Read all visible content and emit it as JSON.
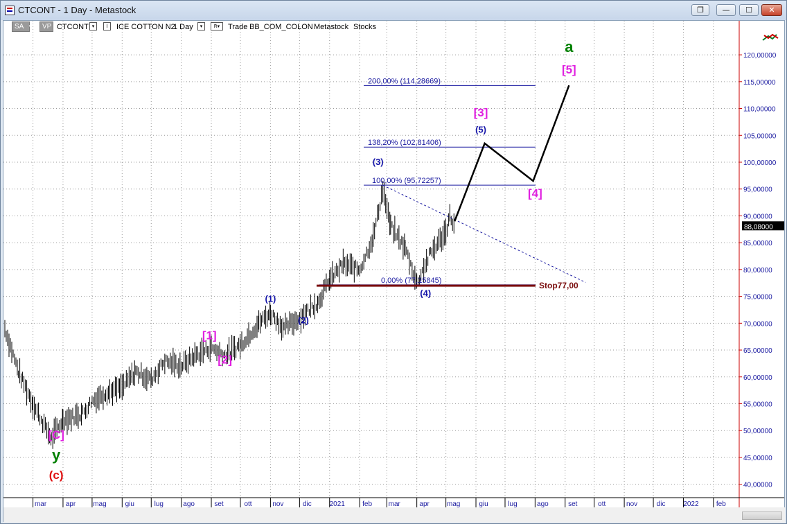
{
  "window": {
    "title": "CTCONT - 1 Day - Metastock",
    "buttons": {
      "restore": "❐",
      "minimize": "—",
      "maximize": "☐",
      "close": "✕"
    }
  },
  "toolbar": {
    "sa": "SA",
    "vp": "VP",
    "symbol": "CTCONT",
    "drop_icon": "▾",
    "security_name": "ICE COTTON N2",
    "periodicity": "1 Day",
    "r_label": "R",
    "trade": "Trade",
    "expert": "BB_COM_COLON",
    "data_source": "Metastock",
    "type": "Stocks"
  },
  "colors": {
    "price_bars": "#000000",
    "grid": "#9a9a9a",
    "axis_text": "#1a1aa0",
    "fib_lines": "#1a1aa0",
    "stop_line": "#7a0d0d",
    "wave_magenta": "#e020e0",
    "wave_blue": "#1414a8",
    "wave_red": "#e01010",
    "wave_green": "#008000",
    "projection": "#000000",
    "last_price_bg": "#000000"
  },
  "chart_data": {
    "type": "ohlc-bar",
    "ylim": [
      37.5,
      123.5
    ],
    "y_ticks": [
      "40,00000",
      "45,00000",
      "50,00000",
      "55,00000",
      "60,00000",
      "65,00000",
      "70,00000",
      "75,00000",
      "80,00000",
      "85,00000",
      "90,00000",
      "95,00000",
      "100,00000",
      "105,00000",
      "110,00000",
      "115,00000",
      "120,00000"
    ],
    "y_tick_values": [
      40,
      45,
      50,
      55,
      60,
      65,
      70,
      75,
      80,
      85,
      90,
      95,
      100,
      105,
      110,
      115,
      120
    ],
    "x_ticks": [
      "mar",
      "apr",
      "mag",
      "giu",
      "lug",
      "ago",
      "set",
      "ott",
      "nov",
      "dic",
      "2021",
      "feb",
      "mar",
      "apr",
      "mag",
      "giu",
      "lug",
      "ago",
      "set",
      "ott",
      "nov",
      "dic",
      "2022",
      "feb"
    ],
    "x_tick_dates": [
      "2020-03",
      "2020-04",
      "2020-05",
      "2020-06",
      "2020-07",
      "2020-08",
      "2020-09",
      "2020-10",
      "2020-11",
      "2020-12",
      "2021-01",
      "2021-02",
      "2021-03",
      "2021-04",
      "2021-05",
      "2021-06",
      "2021-07",
      "2021-08",
      "2021-09",
      "2021-10",
      "2021-11",
      "2021-12",
      "2022-01",
      "2022-02"
    ],
    "last_price": "88,08000",
    "last_price_value": 88.08,
    "price_path": [
      [
        "2020-02-01",
        69
      ],
      [
        "2020-02-15",
        61
      ],
      [
        "2020-03-01",
        55
      ],
      [
        "2020-03-20",
        48.5
      ],
      [
        "2020-04-01",
        52
      ],
      [
        "2020-04-20",
        53
      ],
      [
        "2020-05-01",
        55.5
      ],
      [
        "2020-05-15",
        57
      ],
      [
        "2020-06-01",
        58
      ],
      [
        "2020-06-15",
        61
      ],
      [
        "2020-07-01",
        59.5
      ],
      [
        "2020-07-15",
        63
      ],
      [
        "2020-08-01",
        62
      ],
      [
        "2020-08-15",
        64
      ],
      [
        "2020-09-01",
        65.5
      ],
      [
        "2020-09-15",
        64
      ],
      [
        "2020-10-01",
        66
      ],
      [
        "2020-10-20",
        70
      ],
      [
        "2020-11-01",
        72
      ],
      [
        "2020-11-15",
        69
      ],
      [
        "2020-12-01",
        71
      ],
      [
        "2020-12-20",
        74
      ],
      [
        "2021-01-01",
        78
      ],
      [
        "2021-01-15",
        81
      ],
      [
        "2021-02-01",
        80
      ],
      [
        "2021-02-15",
        86
      ],
      [
        "2021-02-25",
        95
      ],
      [
        "2021-03-05",
        88
      ],
      [
        "2021-03-20",
        84
      ],
      [
        "2021-04-01",
        77.5
      ],
      [
        "2021-04-15",
        83
      ],
      [
        "2021-05-01",
        87
      ],
      [
        "2021-05-05",
        90
      ],
      [
        "2021-05-10",
        88.08
      ]
    ],
    "fib_levels": [
      {
        "label": "200,00% (114,28669)",
        "value": 114.28669
      },
      {
        "label": "138,20% (102,81406)",
        "value": 102.81406
      },
      {
        "label": "100,00% (95,72257)",
        "value": 95.72257
      },
      {
        "label": "0,00% (77,15845)",
        "value": 77.15845
      }
    ],
    "stop": {
      "label": "Stop77,00",
      "value": 77.0
    },
    "trendline": [
      [
        "2021-02-25",
        95.7
      ],
      [
        "2021-09-15",
        77.6
      ]
    ],
    "projection": [
      [
        "2021-05-10",
        89
      ],
      [
        "2021-06-10",
        103.5
      ],
      [
        "2021-07-30",
        96.5
      ],
      [
        "2021-09-05",
        114.3
      ]
    ],
    "wave_labels": [
      {
        "text": "[C]",
        "color": "wave_magenta",
        "x": "2020-03-25",
        "y": 48.5
      },
      {
        "text": "y",
        "color": "wave_green",
        "x": "2020-03-25",
        "y": 44.5
      },
      {
        "text": "(c)",
        "color": "wave_red",
        "x": "2020-03-25",
        "y": 41
      },
      {
        "text": "[1]",
        "color": "wave_magenta",
        "x": "2020-08-30",
        "y": 67
      },
      {
        "text": "[2]",
        "color": "wave_magenta",
        "x": "2020-09-15",
        "y": 62.5
      },
      {
        "text": "(1)",
        "color": "wave_blue",
        "x": "2020-11-01",
        "y": 74
      },
      {
        "text": "(2)",
        "color": "wave_blue",
        "x": "2020-12-05",
        "y": 70
      },
      {
        "text": "(3)",
        "color": "wave_blue",
        "x": "2021-02-20",
        "y": 99.5
      },
      {
        "text": "(4)",
        "color": "wave_blue",
        "x": "2021-04-10",
        "y": 75
      },
      {
        "text": "(5)",
        "color": "wave_blue",
        "x": "2021-06-06",
        "y": 105.5
      },
      {
        "text": "[3]",
        "color": "wave_magenta",
        "x": "2021-06-06",
        "y": 108.5
      },
      {
        "text": "[4]",
        "color": "wave_magenta",
        "x": "2021-08-01",
        "y": 93.5
      },
      {
        "text": "[5]",
        "color": "wave_magenta",
        "x": "2021-09-05",
        "y": 116.5
      },
      {
        "text": "a",
        "color": "wave_green",
        "x": "2021-09-05",
        "y": 120.5
      }
    ]
  }
}
